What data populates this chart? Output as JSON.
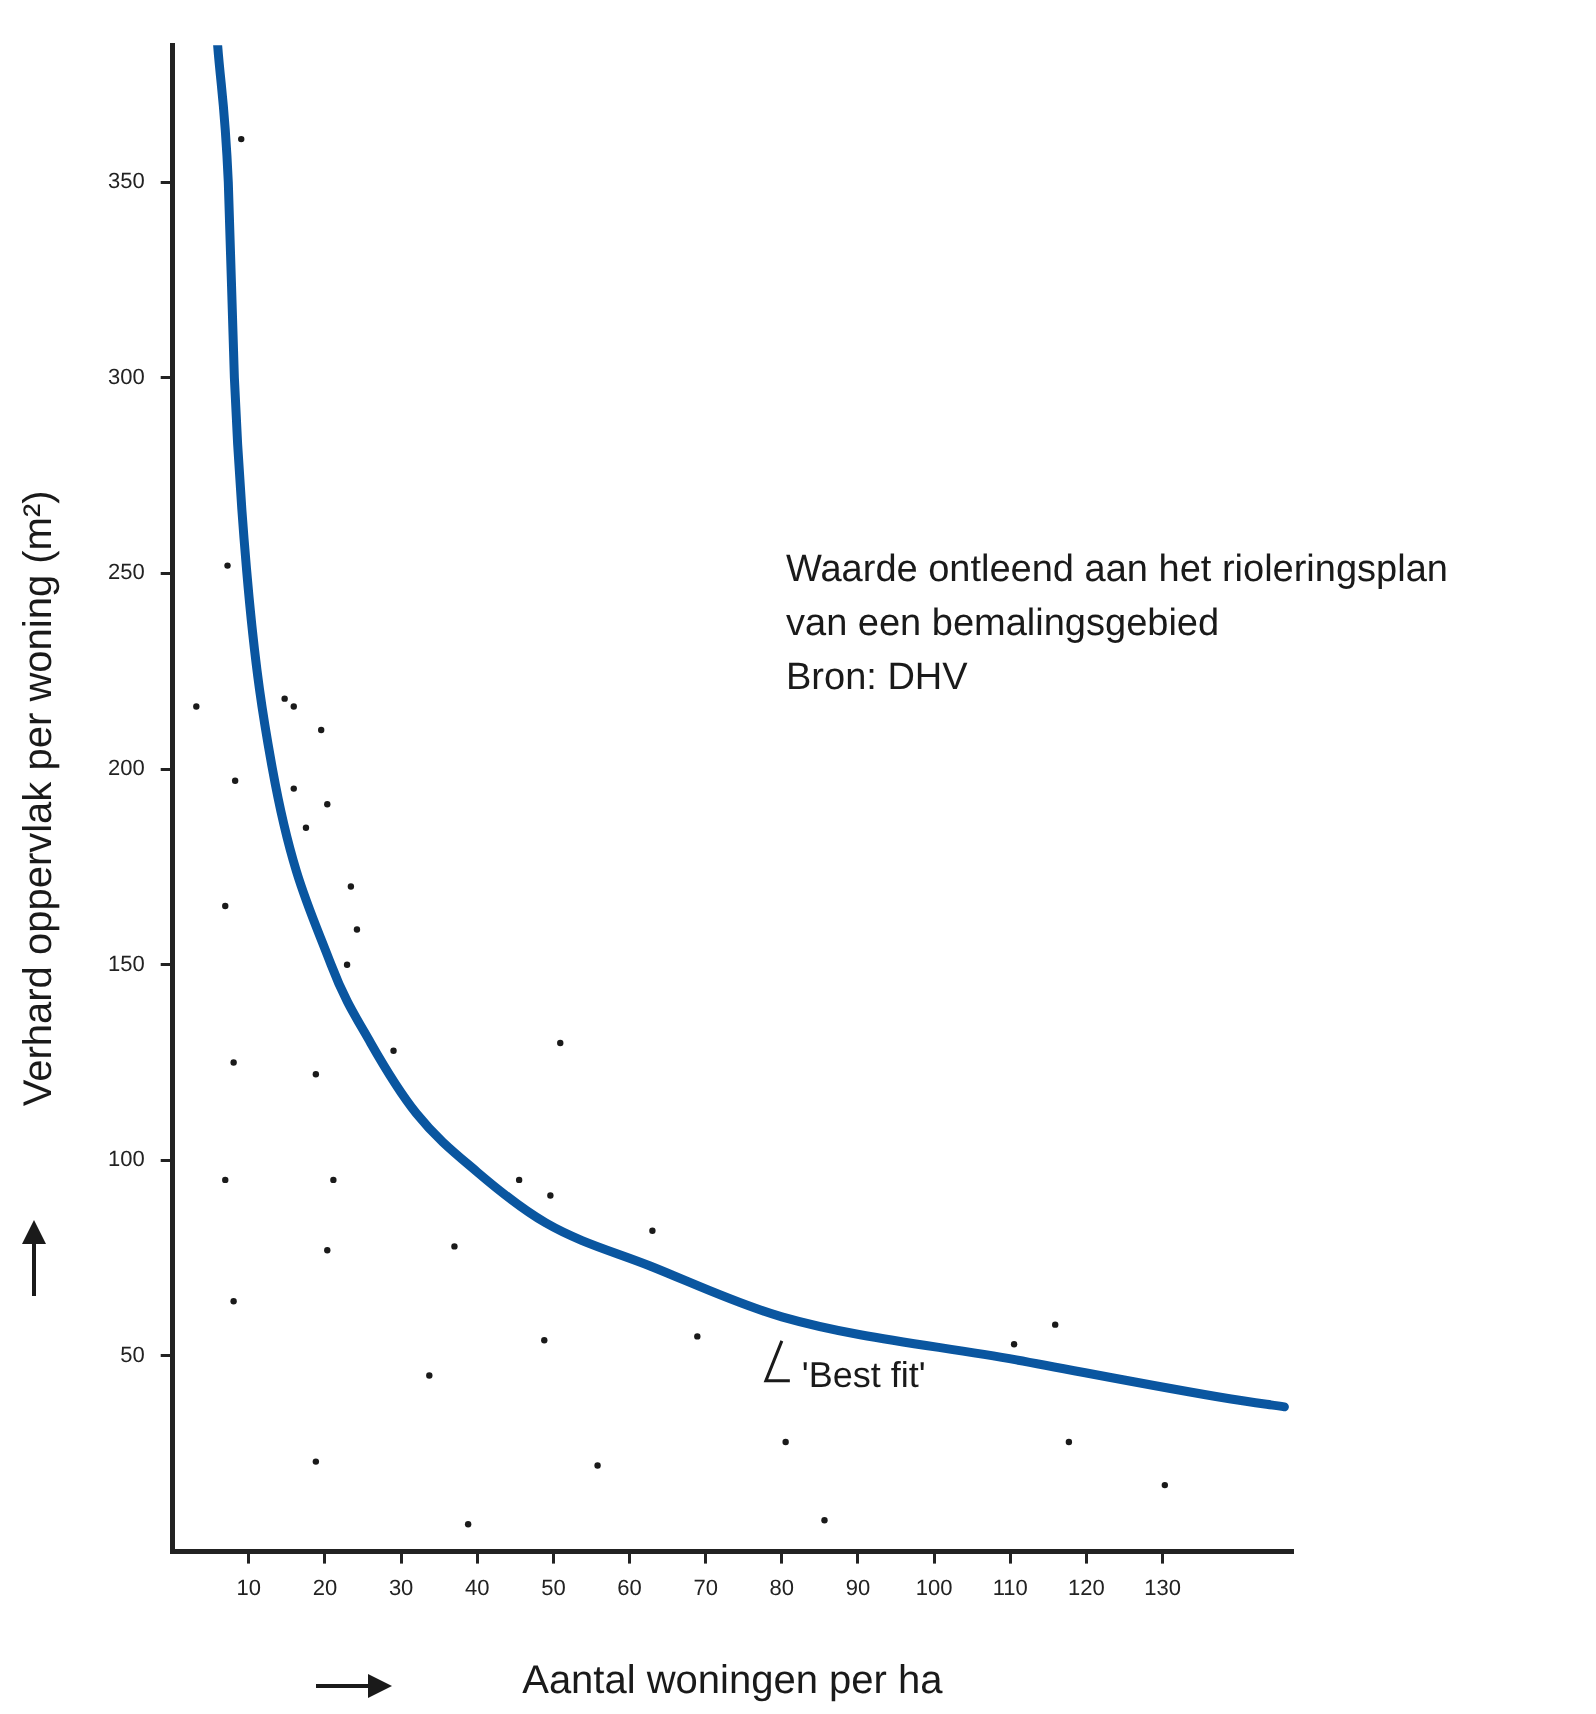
{
  "chart_data": {
    "type": "scatter",
    "xlabel": "Aantal woningen per ha",
    "ylabel": "Verhard oppervlak per woning (m²)",
    "xlim": [
      0,
      147
    ],
    "xticks": [
      10,
      20,
      30,
      40,
      50,
      60,
      70,
      80,
      90,
      100,
      110,
      120,
      130
    ],
    "ylim": [
      0,
      385
    ],
    "yticks": [
      50,
      100,
      150,
      200,
      250,
      300,
      350
    ],
    "grid": false,
    "legend": false,
    "marker": "circle",
    "annotations": [
      "Waarde ontleend aan het rioleringsplan",
      "van een bemalingsgebied",
      "Bron: DHV",
      {
        "text": "'Best fit'",
        "x": 80,
        "y": 60
      }
    ],
    "series": [
      {
        "type": "scatter",
        "color": "#1a1a1a",
        "x": [
          9,
          7.2,
          3.1,
          14.7,
          15.9,
          8.2,
          19.5,
          15.9,
          20.3,
          17.5,
          23.4,
          24.2,
          22.9,
          6.9,
          8,
          18.8,
          29,
          50.9,
          6.9,
          21.1,
          45.5,
          49.6,
          63,
          20.3,
          37,
          8,
          33.7,
          48.8,
          68.9,
          110.5,
          115.9,
          18.8,
          55.8,
          80.5,
          117.7,
          130.3,
          38.8,
          85.6
        ],
        "values": [
          361,
          252,
          216,
          218,
          216,
          197,
          210,
          195,
          191,
          185,
          170,
          159,
          150,
          165,
          125,
          122,
          128,
          130,
          95,
          95,
          95,
          91,
          82,
          77,
          78,
          64,
          45,
          54,
          55,
          53,
          58,
          23,
          22,
          28,
          28,
          17,
          7,
          8
        ]
      },
      {
        "type": "line",
        "color": "#0a56a0",
        "marker": "none",
        "x": [
          5.9,
          7.3,
          8.1,
          9.7,
          13.1,
          20.8,
          26,
          32,
          40,
          49,
          62.7,
          80,
          110.8,
          139,
          146
        ],
        "values": [
          385,
          350,
          300,
          251,
          200,
          150,
          130,
          112,
          97,
          84,
          73,
          60,
          49,
          39,
          37
        ]
      }
    ]
  }
}
